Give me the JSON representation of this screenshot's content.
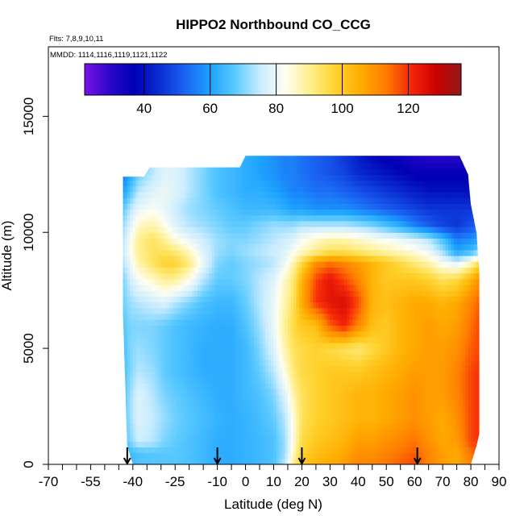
{
  "chart_data": {
    "type": "heatmap",
    "title": "HIPPO2 Northbound CO_CCG",
    "subtitle_lines": [
      "Flts: 7,8,9,10,11",
      "MMDD: 1114,1116,1119,1121,1122"
    ],
    "xlabel": "Latitude (deg N)",
    "ylabel": "Altitude (m)",
    "xlim": [
      -70,
      90
    ],
    "ylim": [
      0,
      18000
    ],
    "x_ticks": [
      -70,
      -55,
      -40,
      -25,
      -10,
      0,
      10,
      20,
      30,
      40,
      50,
      60,
      70,
      80,
      90
    ],
    "x_tick_labels": [
      "-70",
      "-55",
      "-40",
      "-25",
      "-10",
      "0",
      "10",
      "20",
      "30",
      "40",
      "50",
      "60",
      "70",
      "80",
      "90"
    ],
    "x_minor_ticks": [
      -65,
      -60,
      -50,
      -45,
      -35,
      -30,
      -20,
      -15,
      -5,
      5,
      15,
      25,
      35,
      45,
      55,
      65,
      75,
      85
    ],
    "y_ticks": [
      0,
      5000,
      10000,
      15000
    ],
    "y_tick_labels": [
      "0",
      "5000",
      "10000",
      "15000"
    ],
    "colorbar": {
      "range": [
        22,
        136
      ],
      "ticks": [
        40,
        60,
        80,
        100,
        120
      ],
      "tick_labels": [
        "40",
        "60",
        "80",
        "100",
        "120"
      ],
      "colors": [
        "#7a12e6",
        "#2c07c9",
        "#0000b4",
        "#0a2ed2",
        "#1b63f2",
        "#1da3ff",
        "#5ccaff",
        "#c9ecff",
        "#fefef2",
        "#ffef8c",
        "#ffd22e",
        "#ffac00",
        "#ff7d00",
        "#f4270a",
        "#cc0000",
        "#8f1a1a"
      ]
    },
    "markers": {
      "type": "down-arrow",
      "latitudes": [
        -42,
        -10,
        20,
        61
      ]
    },
    "grid": false,
    "concentration_field": {
      "value_range": [
        25,
        125
      ],
      "x_nodes": [
        -44,
        -41,
        -38,
        -33,
        -29,
        -25,
        -20,
        -15,
        -10,
        -5,
        0,
        5,
        10,
        14,
        17,
        20,
        25,
        30,
        35,
        40,
        45,
        50,
        55,
        60,
        65,
        70,
        75,
        80,
        83
      ],
      "y_nodes": [
        0,
        500,
        1000,
        2000,
        3000,
        4000,
        5000,
        6000,
        7000,
        8000,
        8700,
        9200,
        9700,
        10300,
        11000,
        11800,
        12600,
        13400
      ],
      "values": [
        [
          62,
          64,
          66,
          67,
          67,
          67,
          66,
          64,
          62,
          62,
          63,
          64,
          66,
          75,
          90,
          100,
          104,
          106,
          108,
          112,
          112,
          114,
          116,
          118,
          112,
          108,
          106,
          112,
          116
        ],
        [
          62,
          64,
          66,
          67,
          67,
          67,
          66,
          64,
          62,
          62,
          63,
          64,
          66,
          72,
          86,
          98,
          102,
          104,
          106,
          110,
          110,
          112,
          114,
          116,
          112,
          108,
          106,
          114,
          118
        ],
        [
          64,
          70,
          76,
          74,
          70,
          68,
          66,
          64,
          62,
          62,
          63,
          64,
          66,
          72,
          84,
          96,
          100,
          102,
          104,
          108,
          108,
          110,
          112,
          114,
          110,
          106,
          108,
          118,
          120
        ],
        [
          64,
          72,
          78,
          75,
          72,
          69,
          67,
          65,
          63,
          62,
          63,
          65,
          68,
          74,
          84,
          94,
          98,
          100,
          102,
          104,
          104,
          106,
          108,
          110,
          108,
          106,
          110,
          118,
          120
        ],
        [
          64,
          72,
          78,
          74,
          70,
          68,
          66,
          64,
          62,
          62,
          64,
          66,
          70,
          78,
          88,
          94,
          98,
          100,
          102,
          104,
          104,
          106,
          108,
          110,
          108,
          108,
          112,
          118,
          120
        ],
        [
          64,
          70,
          74,
          72,
          68,
          66,
          64,
          62,
          62,
          62,
          64,
          68,
          74,
          84,
          92,
          96,
          98,
          100,
          100,
          100,
          102,
          104,
          106,
          108,
          108,
          108,
          112,
          118,
          120
        ],
        [
          64,
          70,
          72,
          70,
          68,
          66,
          64,
          62,
          62,
          62,
          64,
          70,
          78,
          88,
          94,
          96,
          98,
          96,
          94,
          92,
          96,
          100,
          104,
          106,
          108,
          108,
          110,
          116,
          118
        ],
        [
          66,
          70,
          70,
          70,
          68,
          66,
          64,
          63,
          62,
          62,
          66,
          72,
          80,
          90,
          96,
          100,
          102,
          116,
          122,
          112,
          102,
          100,
          104,
          106,
          108,
          106,
          108,
          114,
          118
        ],
        [
          68,
          72,
          74,
          76,
          78,
          74,
          70,
          66,
          64,
          64,
          68,
          74,
          80,
          88,
          94,
          106,
          120,
          124,
          126,
          118,
          104,
          102,
          104,
          106,
          106,
          104,
          106,
          112,
          116
        ],
        [
          68,
          76,
          82,
          86,
          90,
          90,
          84,
          74,
          68,
          68,
          70,
          74,
          78,
          86,
          92,
          104,
          118,
          124,
          118,
          112,
          104,
          100,
          100,
          100,
          98,
          94,
          96,
          104,
          110
        ],
        [
          72,
          80,
          88,
          94,
          98,
          98,
          92,
          80,
          70,
          68,
          70,
          72,
          74,
          80,
          88,
          96,
          110,
          114,
          112,
          108,
          104,
          100,
          96,
          92,
          88,
          82,
          78,
          86,
          96
        ],
        [
          74,
          82,
          90,
          94,
          94,
          92,
          86,
          78,
          72,
          70,
          72,
          74,
          76,
          78,
          82,
          86,
          90,
          94,
          94,
          92,
          90,
          88,
          86,
          84,
          80,
          72,
          60,
          64,
          70
        ],
        [
          72,
          82,
          90,
          94,
          90,
          84,
          80,
          76,
          72,
          70,
          70,
          72,
          74,
          76,
          78,
          82,
          86,
          88,
          88,
          86,
          84,
          82,
          80,
          78,
          74,
          66,
          56,
          58,
          62
        ],
        [
          70,
          78,
          86,
          88,
          84,
          78,
          74,
          72,
          70,
          68,
          68,
          70,
          72,
          72,
          72,
          74,
          74,
          74,
          74,
          72,
          70,
          66,
          62,
          56,
          52,
          48,
          46,
          50,
          54
        ],
        [
          66,
          74,
          80,
          82,
          80,
          76,
          72,
          70,
          68,
          66,
          64,
          64,
          64,
          62,
          60,
          60,
          58,
          58,
          58,
          56,
          54,
          52,
          50,
          48,
          46,
          46,
          46,
          46,
          46
        ],
        [
          58,
          66,
          74,
          78,
          80,
          78,
          74,
          70,
          66,
          64,
          62,
          62,
          60,
          58,
          56,
          56,
          54,
          54,
          52,
          50,
          48,
          46,
          44,
          42,
          40,
          40,
          40,
          40,
          40
        ],
        [
          54,
          60,
          68,
          74,
          78,
          78,
          74,
          70,
          66,
          64,
          62,
          60,
          58,
          56,
          56,
          54,
          52,
          50,
          48,
          44,
          42,
          40,
          38,
          36,
          36,
          36,
          36,
          36,
          36
        ],
        [
          54,
          60,
          68,
          74,
          78,
          78,
          74,
          70,
          66,
          64,
          62,
          60,
          58,
          56,
          56,
          54,
          52,
          50,
          46,
          42,
          38,
          36,
          34,
          32,
          30,
          30,
          30,
          30,
          30
        ]
      ],
      "column_extents": [
        {
          "lat": -43.5,
          "bottom": 6500,
          "top": 12400
        },
        {
          "lat": -42,
          "bottom": 800,
          "top": 12400
        },
        {
          "lat": -40,
          "bottom": 0,
          "top": 12400
        },
        {
          "lat": -36,
          "bottom": 0,
          "top": 12400
        },
        {
          "lat": -34,
          "bottom": 0,
          "top": 12800
        },
        {
          "lat": -20,
          "bottom": 0,
          "top": 12800
        },
        {
          "lat": -2,
          "bottom": 0,
          "top": 12800
        },
        {
          "lat": 0,
          "bottom": 0,
          "top": 13300
        },
        {
          "lat": 60,
          "bottom": 0,
          "top": 13300
        },
        {
          "lat": 76,
          "bottom": 0,
          "top": 13300
        },
        {
          "lat": 79,
          "bottom": 0,
          "top": 12500
        },
        {
          "lat": 80,
          "bottom": 0,
          "top": 11200
        },
        {
          "lat": 82,
          "bottom": 800,
          "top": 10000
        },
        {
          "lat": 83,
          "bottom": 1300,
          "top": 8300
        }
      ]
    }
  }
}
